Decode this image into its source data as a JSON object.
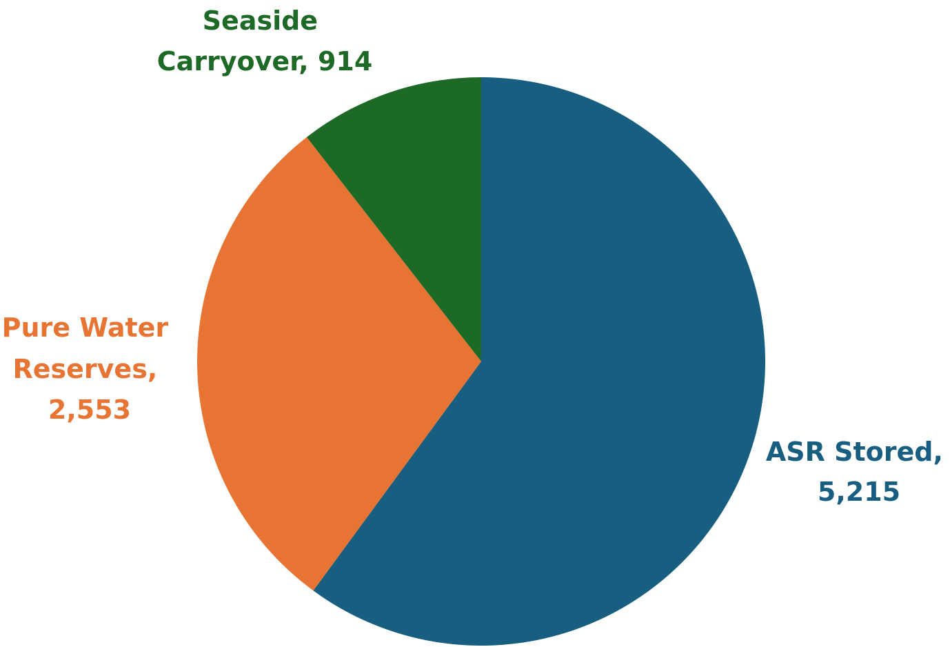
{
  "chart_data": {
    "type": "pie",
    "title": "",
    "slices": [
      {
        "label": "ASR Stored,",
        "value_text": "5,215",
        "value": 5215,
        "color": "#175E80"
      },
      {
        "label": "Pure Water Reserves,",
        "value_text": "2,553",
        "value": 2553,
        "color": "#E87434"
      },
      {
        "label": "Seaside Carryover,",
        "value_text": "914",
        "value": 914,
        "color": "#1D6A26"
      }
    ],
    "start_angle_deg": 0,
    "direction": "clockwise",
    "legend": "none"
  }
}
